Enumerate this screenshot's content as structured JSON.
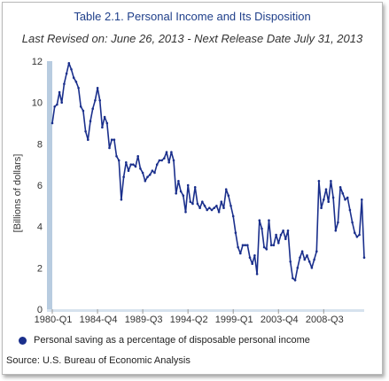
{
  "title": "Table 2.1. Personal Income and Its Disposition",
  "subtitle": "Last Revised on: June 26, 2013 - Next Release Date July 31, 2013",
  "source": "Source: U.S. Bureau of Economic Analysis",
  "colors": {
    "series": "#1a2f8c",
    "title": "#1f3f8a",
    "axis_band": "#b8cce0"
  },
  "chart_data": {
    "type": "line",
    "title": "Table 2.1. Personal Income and Its Disposition",
    "ylabel": "[Billions of dollars]",
    "xlabel": "",
    "ylim": [
      0,
      12
    ],
    "yticks": [
      0,
      2,
      4,
      6,
      8,
      10,
      12
    ],
    "xtick_labels": [
      "1980-Q1",
      "1984-Q4",
      "1989-Q3",
      "1994-Q2",
      "1999-Q1",
      "2003-Q4",
      "2008-Q3"
    ],
    "xtick_index": [
      0,
      19,
      38,
      57,
      76,
      95,
      114
    ],
    "grid": false,
    "legend_position": "bottom",
    "series": [
      {
        "name": "Personal saving as a percentage of disposable personal income",
        "x_start": "1980-Q1",
        "frequency": "quarterly",
        "values": [
          9.0,
          9.8,
          9.9,
          10.5,
          10.0,
          10.9,
          11.4,
          11.9,
          11.6,
          11.2,
          11.0,
          10.7,
          9.8,
          9.6,
          8.6,
          8.2,
          9.1,
          9.7,
          10.1,
          10.7,
          10.1,
          8.8,
          9.3,
          9.0,
          7.8,
          8.2,
          8.2,
          7.4,
          7.2,
          5.3,
          6.4,
          7.1,
          6.7,
          7.0,
          7.0,
          6.9,
          7.4,
          6.8,
          6.6,
          6.2,
          6.4,
          6.5,
          6.7,
          6.6,
          7.0,
          7.2,
          7.2,
          7.3,
          7.6,
          7.1,
          7.6,
          7.2,
          5.6,
          6.2,
          5.7,
          5.5,
          4.7,
          6.0,
          5.2,
          5.1,
          5.9,
          5.1,
          4.9,
          5.2,
          5.0,
          4.8,
          4.9,
          4.8,
          4.9,
          5.0,
          4.7,
          5.2,
          4.9,
          5.8,
          5.5,
          5.0,
          4.5,
          3.7,
          3.0,
          2.7,
          3.1,
          3.1,
          3.1,
          2.5,
          2.2,
          2.6,
          1.7,
          4.3,
          3.9,
          3.0,
          2.9,
          4.3,
          3.1,
          3.1,
          3.6,
          3.2,
          3.6,
          3.8,
          3.4,
          3.8,
          2.3,
          1.5,
          1.4,
          2.0,
          2.5,
          2.8,
          2.4,
          2.6,
          2.3,
          2.0,
          2.4,
          2.8,
          6.2,
          4.9,
          5.3,
          5.8,
          5.2,
          6.2,
          5.4,
          3.8,
          4.2,
          5.9,
          5.6,
          5.3,
          5.4,
          4.8,
          4.2,
          3.7,
          3.5,
          3.6,
          5.3,
          2.5
        ]
      }
    ]
  }
}
